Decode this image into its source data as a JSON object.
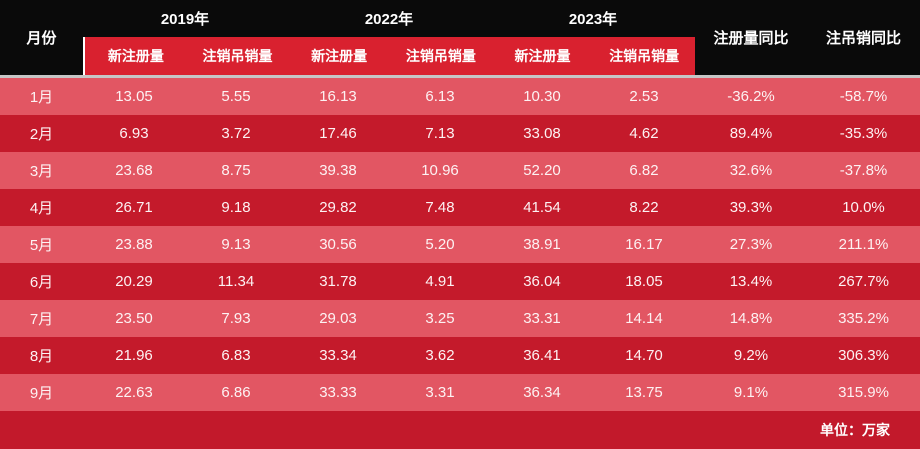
{
  "chart_data": {
    "type": "table",
    "unit_note": "单位：万家",
    "month_header": "月份",
    "year_groups": [
      {
        "year": "2019年",
        "sub": [
          "新注册量",
          "注销吊销量"
        ]
      },
      {
        "year": "2022年",
        "sub": [
          "新注册量",
          "注销吊销量"
        ]
      },
      {
        "year": "2023年",
        "sub": [
          "新注册量",
          "注销吊销量"
        ]
      }
    ],
    "yoy_headers": [
      "注册量同比",
      "注吊销同比"
    ],
    "rows": [
      {
        "month": "1月",
        "values": [
          "13.05",
          "5.55",
          "16.13",
          "6.13",
          "10.30",
          "2.53"
        ],
        "yoy": [
          "-36.2%",
          "-58.7%"
        ]
      },
      {
        "month": "2月",
        "values": [
          "6.93",
          "3.72",
          "17.46",
          "7.13",
          "33.08",
          "4.62"
        ],
        "yoy": [
          "89.4%",
          "-35.3%"
        ]
      },
      {
        "month": "3月",
        "values": [
          "23.68",
          "8.75",
          "39.38",
          "10.96",
          "52.20",
          "6.82"
        ],
        "yoy": [
          "32.6%",
          "-37.8%"
        ]
      },
      {
        "month": "4月",
        "values": [
          "26.71",
          "9.18",
          "29.82",
          "7.48",
          "41.54",
          "8.22"
        ],
        "yoy": [
          "39.3%",
          "10.0%"
        ]
      },
      {
        "month": "5月",
        "values": [
          "23.88",
          "9.13",
          "30.56",
          "5.20",
          "38.91",
          "16.17"
        ],
        "yoy": [
          "27.3%",
          "211.1%"
        ]
      },
      {
        "month": "6月",
        "values": [
          "20.29",
          "11.34",
          "31.78",
          "4.91",
          "36.04",
          "18.05"
        ],
        "yoy": [
          "13.4%",
          "267.7%"
        ]
      },
      {
        "month": "7月",
        "values": [
          "23.50",
          "7.93",
          "29.03",
          "3.25",
          "33.31",
          "14.14"
        ],
        "yoy": [
          "14.8%",
          "335.2%"
        ]
      },
      {
        "month": "8月",
        "values": [
          "21.96",
          "6.83",
          "33.34",
          "3.62",
          "36.41",
          "14.70"
        ],
        "yoy": [
          "9.2%",
          "306.3%"
        ]
      },
      {
        "month": "9月",
        "values": [
          "22.63",
          "6.86",
          "33.33",
          "3.31",
          "36.34",
          "13.75"
        ],
        "yoy": [
          "9.1%",
          "315.9%"
        ]
      }
    ]
  },
  "colors": {
    "header_black": "#0a0a0a",
    "subheader_band_red": "#d9212f",
    "row_light_red": "#e25663",
    "row_dark_red": "#c41a2b",
    "footer_red": "#c2192b",
    "separator_gray": "#c6c6c6",
    "text_white": "#ffffff"
  }
}
